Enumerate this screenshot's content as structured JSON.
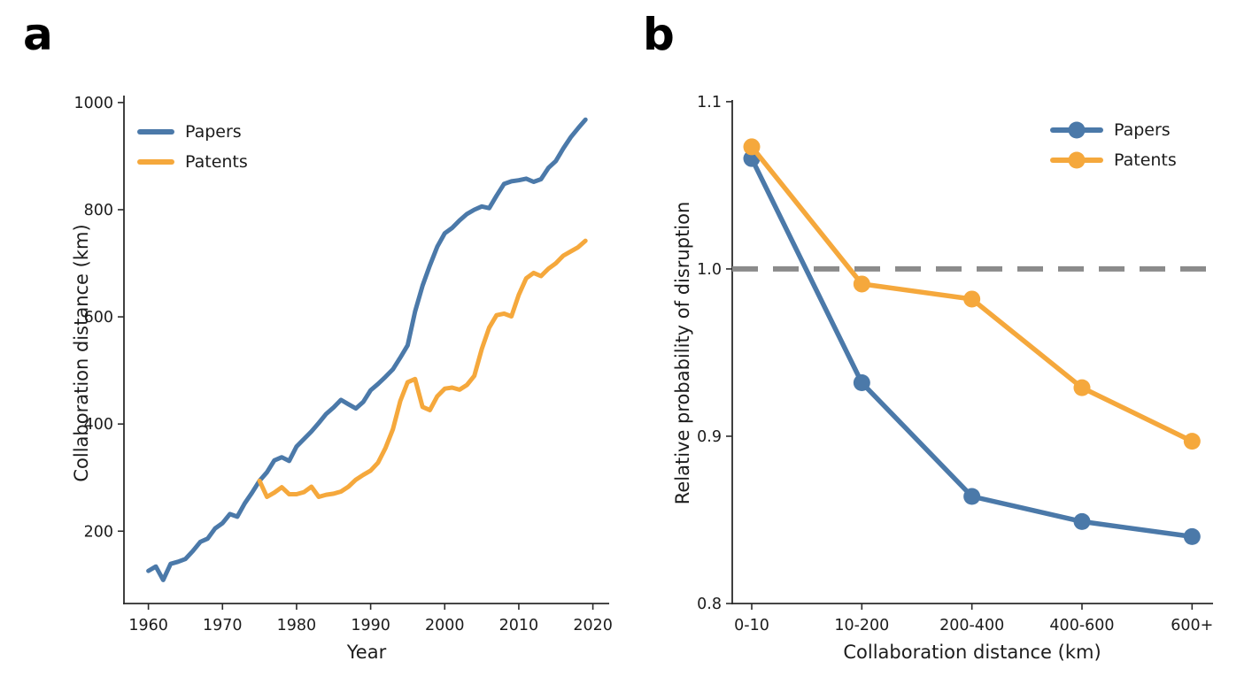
{
  "colors": {
    "papers": "#4B79A9",
    "patents": "#F5A83C",
    "reference_line": "#8B8B8B",
    "axis": "#2B2B2B",
    "text": "#1C1C1C",
    "background": "#FFFFFF"
  },
  "panel_a": {
    "letter": "a",
    "xlabel": "Year",
    "ylabel": "Collaboration distance (km)",
    "x_ticks": [
      1960,
      1970,
      1980,
      1990,
      2000,
      2010,
      2020
    ],
    "y_ticks": [
      200,
      400,
      600,
      800,
      1000
    ],
    "legend": [
      {
        "label": "Papers",
        "series": "papers"
      },
      {
        "label": "Patents",
        "series": "patents"
      }
    ]
  },
  "panel_b": {
    "letter": "b",
    "xlabel": "Collaboration distance (km)",
    "ylabel": "Relative probability of disruption",
    "x_ticks": [
      "0-10",
      "10-200",
      "200-400",
      "400-600",
      "600+"
    ],
    "y_ticks": [
      0.8,
      0.9,
      1.0,
      1.1
    ],
    "reference_value": 1.0,
    "legend": [
      {
        "label": "Papers",
        "series": "papers"
      },
      {
        "label": "Patents",
        "series": "patents"
      }
    ]
  },
  "chart_data": [
    {
      "panel": "a",
      "type": "line",
      "title": "",
      "xlabel": "Year",
      "ylabel": "Collaboration distance (km)",
      "xlim": [
        1956.7,
        2022.2
      ],
      "ylim": [
        65,
        1013
      ],
      "grid": false,
      "legend_position": "upper left",
      "series": [
        {
          "name": "Papers",
          "color_key": "papers",
          "x": [
            1960,
            1961,
            1962,
            1963,
            1964,
            1965,
            1966,
            1967,
            1968,
            1969,
            1970,
            1971,
            1972,
            1973,
            1974,
            1975,
            1976,
            1977,
            1978,
            1979,
            1980,
            1981,
            1982,
            1983,
            1984,
            1985,
            1986,
            1987,
            1988,
            1989,
            1990,
            1991,
            1992,
            1993,
            1994,
            1995,
            1996,
            1997,
            1998,
            1999,
            2000,
            2001,
            2002,
            2003,
            2004,
            2005,
            2006,
            2007,
            2008,
            2009,
            2010,
            2011,
            2012,
            2013,
            2014,
            2015,
            2016,
            2017,
            2018,
            2019
          ],
          "y": [
            126,
            134,
            109,
            139,
            143,
            148,
            163,
            180,
            186,
            205,
            215,
            232,
            227,
            252,
            272,
            294,
            310,
            332,
            338,
            331,
            358,
            372,
            386,
            402,
            419,
            431,
            445,
            437,
            429,
            441,
            463,
            475,
            488,
            502,
            524,
            547,
            610,
            658,
            696,
            731,
            756,
            766,
            780,
            792,
            800,
            806,
            803,
            826,
            848,
            853,
            855,
            858,
            852,
            857,
            878,
            891,
            914,
            935,
            952,
            968
          ]
        },
        {
          "name": "Patents",
          "color_key": "patents",
          "x": [
            1975,
            1976,
            1977,
            1978,
            1979,
            1980,
            1981,
            1982,
            1983,
            1984,
            1985,
            1986,
            1987,
            1988,
            1989,
            1990,
            1991,
            1992,
            1993,
            1994,
            1995,
            1996,
            1997,
            1998,
            1999,
            2000,
            2001,
            2002,
            2003,
            2004,
            2005,
            2006,
            2007,
            2008,
            2009,
            2010,
            2011,
            2012,
            2013,
            2014,
            2015,
            2016,
            2017,
            2018,
            2019
          ],
          "y": [
            294,
            264,
            272,
            282,
            269,
            269,
            273,
            283,
            264,
            268,
            270,
            274,
            283,
            296,
            305,
            313,
            328,
            355,
            390,
            443,
            478,
            484,
            432,
            426,
            452,
            466,
            468,
            464,
            473,
            490,
            540,
            580,
            603,
            606,
            601,
            641,
            672,
            682,
            676,
            690,
            700,
            714,
            722,
            730,
            742
          ]
        }
      ]
    },
    {
      "panel": "b",
      "type": "line",
      "title": "",
      "xlabel": "Collaboration distance (km)",
      "ylabel": "Relative probability of disruption",
      "categories": [
        "0-10",
        "10-200",
        "200-400",
        "400-600",
        "600+"
      ],
      "ylim": [
        0.8,
        1.101
      ],
      "grid": false,
      "legend_position": "upper right",
      "reference_line": 1.0,
      "series": [
        {
          "name": "Papers",
          "color_key": "papers",
          "values": [
            1.066,
            0.932,
            0.864,
            0.849,
            0.84
          ]
        },
        {
          "name": "Patents",
          "color_key": "patents",
          "values": [
            1.073,
            0.991,
            0.982,
            0.929,
            0.897
          ]
        }
      ]
    }
  ]
}
